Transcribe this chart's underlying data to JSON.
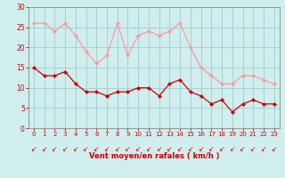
{
  "x": [
    0,
    1,
    2,
    3,
    4,
    5,
    6,
    7,
    8,
    9,
    10,
    11,
    12,
    13,
    14,
    15,
    16,
    17,
    18,
    19,
    20,
    21,
    22,
    23
  ],
  "wind_avg": [
    15,
    13,
    13,
    14,
    11,
    9,
    9,
    8,
    9,
    9,
    10,
    10,
    8,
    11,
    12,
    9,
    8,
    6,
    7,
    4,
    6,
    7,
    6,
    6
  ],
  "wind_gust": [
    26,
    26,
    24,
    26,
    23,
    19,
    16,
    18,
    26,
    18,
    23,
    24,
    23,
    24,
    26,
    20,
    15,
    13,
    11,
    11,
    13,
    13,
    12,
    11
  ],
  "bg_color": "#d0eeee",
  "grid_color": "#a0cccc",
  "avg_color": "#cc0000",
  "gust_color": "#ff9999",
  "xlabel": "Vent moyen/en rafales ( km/h )",
  "xlabel_color": "#cc0000",
  "tick_color": "#cc0000",
  "spine_color": "#888888",
  "ylim": [
    0,
    30
  ],
  "yticks": [
    0,
    5,
    10,
    15,
    20,
    25,
    30
  ],
  "arrow_char": "↙"
}
